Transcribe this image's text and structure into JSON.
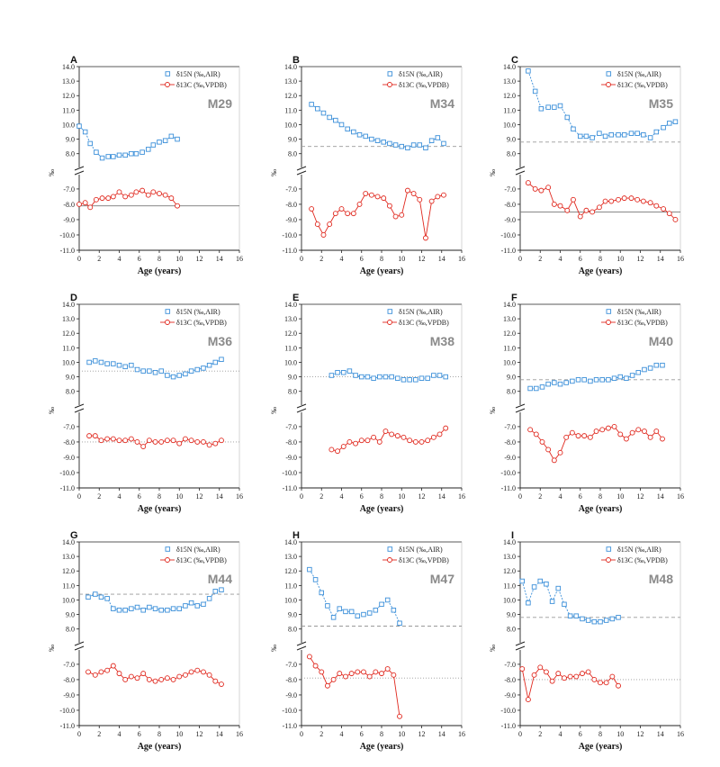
{
  "figure": {
    "xlabel": "Age (years)",
    "ylabel": "‰",
    "n_legend": "δ15N (‰,AIR)",
    "c_legend": "δ13C (‰,VPDB)",
    "x_ticks": [
      "0",
      "2",
      "4",
      "6",
      "8",
      "10",
      "12",
      "14",
      "16"
    ],
    "y_ticks_top": [
      "8.0",
      "9.0",
      "10.0",
      "11.0",
      "12.0",
      "13.0",
      "14.0"
    ],
    "y_ticks_bottom": [
      "-7.0",
      "-8.0",
      "-9.0",
      "-10.0",
      "-11.0"
    ],
    "colors": {
      "n_series": "#3b8fd9",
      "c_series": "#e0281e",
      "axis": "#222222"
    }
  },
  "chart_data": [
    {
      "type": "line",
      "panel": "A",
      "sample": "M29",
      "xlim": [
        0,
        16
      ],
      "y_top_range": [
        7.3,
        14.0
      ],
      "y_bottom_range": [
        -11.0,
        -6.3
      ],
      "series": [
        {
          "name": "δ15N (‰,AIR)",
          "x": [
            0,
            0.6,
            1.1,
            1.7,
            2.3,
            2.9,
            3.4,
            4.0,
            4.6,
            5.2,
            5.7,
            6.3,
            6.9,
            7.4,
            8.0,
            8.6,
            9.2,
            9.8
          ],
          "values": [
            9.9,
            9.5,
            8.7,
            8.1,
            7.7,
            7.8,
            7.8,
            7.9,
            7.9,
            8.0,
            8.0,
            8.1,
            8.3,
            8.6,
            8.8,
            8.9,
            9.2,
            9.0
          ]
        },
        {
          "name": "δ13C (‰,VPDB)",
          "x": [
            0,
            0.6,
            1.1,
            1.7,
            2.3,
            2.9,
            3.4,
            4.0,
            4.6,
            5.2,
            5.7,
            6.3,
            6.9,
            7.4,
            8.0,
            8.6,
            9.2,
            9.8
          ],
          "values": [
            -8.0,
            -7.9,
            -8.2,
            -7.7,
            -7.6,
            -7.6,
            -7.5,
            -7.2,
            -7.5,
            -7.4,
            -7.2,
            -7.1,
            -7.4,
            -7.2,
            -7.3,
            -7.4,
            -7.6,
            -8.1
          ]
        }
      ],
      "reference_lines": [
        {
          "series": "δ13C (‰,VPDB)",
          "y": -8.1,
          "style": "solid"
        }
      ]
    },
    {
      "type": "line",
      "panel": "B",
      "sample": "M34",
      "xlim": [
        0,
        16
      ],
      "y_top_range": [
        7.3,
        14.0
      ],
      "y_bottom_range": [
        -11.0,
        -6.3
      ],
      "series": [
        {
          "name": "δ15N (‰,AIR)",
          "x": [
            1.0,
            1.6,
            2.2,
            2.8,
            3.4,
            4.0,
            4.6,
            5.2,
            5.8,
            6.4,
            7.0,
            7.6,
            8.2,
            8.8,
            9.4,
            10.0,
            10.6,
            11.2,
            11.8,
            12.4,
            13.0,
            13.6,
            14.2
          ],
          "values": [
            11.4,
            11.1,
            10.8,
            10.5,
            10.3,
            10.0,
            9.7,
            9.5,
            9.3,
            9.2,
            9.0,
            8.9,
            8.8,
            8.7,
            8.6,
            8.5,
            8.4,
            8.6,
            8.6,
            8.4,
            8.9,
            9.1,
            8.7
          ]
        },
        {
          "name": "δ13C (‰,VPDB)",
          "x": [
            1.0,
            1.6,
            2.2,
            2.8,
            3.4,
            4.0,
            4.6,
            5.2,
            5.8,
            6.4,
            7.0,
            7.6,
            8.2,
            8.8,
            9.4,
            10.0,
            10.6,
            11.2,
            11.8,
            12.4,
            13.0,
            13.6,
            14.2
          ],
          "values": [
            -8.3,
            -9.3,
            -10.0,
            -9.3,
            -8.6,
            -8.3,
            -8.6,
            -8.6,
            -8.0,
            -7.3,
            -7.4,
            -7.5,
            -7.6,
            -8.1,
            -8.8,
            -8.7,
            -7.1,
            -7.3,
            -7.7,
            -10.2,
            -7.8,
            -7.5,
            -7.4
          ]
        }
      ],
      "reference_lines": [
        {
          "series": "δ15N (‰,AIR)",
          "y": 8.5,
          "style": "dashed"
        }
      ]
    },
    {
      "type": "line",
      "panel": "C",
      "sample": "M35",
      "xlim": [
        0,
        16
      ],
      "y_top_range": [
        7.3,
        14.0
      ],
      "y_bottom_range": [
        -11.0,
        -6.3
      ],
      "series": [
        {
          "name": "δ15N (‰,AIR)",
          "x": [
            0.8,
            1.5,
            2.1,
            2.8,
            3.4,
            4.0,
            4.7,
            5.3,
            6.0,
            6.6,
            7.2,
            7.9,
            8.5,
            9.1,
            9.8,
            10.4,
            11.1,
            11.7,
            12.3,
            13.0,
            13.6,
            14.3,
            14.9,
            15.5
          ],
          "values": [
            13.7,
            12.3,
            11.1,
            11.2,
            11.2,
            11.3,
            10.5,
            9.7,
            9.2,
            9.2,
            9.1,
            9.4,
            9.2,
            9.3,
            9.3,
            9.3,
            9.4,
            9.4,
            9.3,
            9.1,
            9.5,
            9.8,
            10.1,
            10.2
          ]
        },
        {
          "name": "δ13C (‰,VPDB)",
          "x": [
            0.8,
            1.5,
            2.1,
            2.8,
            3.4,
            4.0,
            4.7,
            5.3,
            6.0,
            6.6,
            7.2,
            7.9,
            8.5,
            9.1,
            9.8,
            10.4,
            11.1,
            11.7,
            12.3,
            13.0,
            13.6,
            14.3,
            14.9,
            15.5
          ],
          "values": [
            -6.6,
            -7.0,
            -7.1,
            -6.9,
            -8.0,
            -8.1,
            -8.4,
            -7.7,
            -8.8,
            -8.4,
            -8.5,
            -8.2,
            -7.8,
            -7.8,
            -7.7,
            -7.6,
            -7.6,
            -7.7,
            -7.8,
            -7.9,
            -8.1,
            -8.3,
            -8.6,
            -9.0
          ]
        }
      ],
      "reference_lines": [
        {
          "series": "δ15N (‰,AIR)",
          "y": 8.8,
          "style": "dashed"
        },
        {
          "series": "δ13C (‰,VPDB)",
          "y": -8.5,
          "style": "solid"
        }
      ]
    },
    {
      "type": "line",
      "panel": "D",
      "sample": "M36",
      "xlim": [
        0,
        16
      ],
      "y_top_range": [
        7.3,
        14.0
      ],
      "y_bottom_range": [
        -11.0,
        -6.3
      ],
      "series": [
        {
          "name": "δ15N (‰,AIR)",
          "x": [
            1.0,
            1.6,
            2.2,
            2.8,
            3.4,
            4.0,
            4.6,
            5.2,
            5.8,
            6.4,
            7.0,
            7.6,
            8.2,
            8.8,
            9.4,
            10.0,
            10.6,
            11.2,
            11.8,
            12.4,
            13.0,
            13.6,
            14.2
          ],
          "values": [
            10.0,
            10.1,
            10.0,
            9.9,
            9.9,
            9.8,
            9.7,
            9.8,
            9.5,
            9.4,
            9.4,
            9.3,
            9.4,
            9.1,
            9.0,
            9.1,
            9.2,
            9.4,
            9.5,
            9.6,
            9.8,
            10.0,
            10.2
          ]
        },
        {
          "name": "δ13C (‰,VPDB)",
          "x": [
            1.0,
            1.6,
            2.2,
            2.8,
            3.4,
            4.0,
            4.6,
            5.2,
            5.8,
            6.4,
            7.0,
            7.6,
            8.2,
            8.8,
            9.4,
            10.0,
            10.6,
            11.2,
            11.8,
            12.4,
            13.0,
            13.6,
            14.2
          ],
          "values": [
            -7.6,
            -7.6,
            -7.9,
            -7.8,
            -7.8,
            -7.9,
            -7.9,
            -7.8,
            -8.0,
            -8.3,
            -7.9,
            -8.0,
            -8.0,
            -7.9,
            -7.9,
            -8.1,
            -7.8,
            -7.9,
            -8.0,
            -8.0,
            -8.2,
            -8.1,
            -7.9
          ]
        }
      ],
      "reference_lines": [
        {
          "series": "δ15N (‰,AIR)",
          "y": 9.4,
          "style": "dotted"
        },
        {
          "series": "δ13C (‰,VPDB)",
          "y": -8.0,
          "style": "dotted"
        }
      ]
    },
    {
      "type": "line",
      "panel": "E",
      "sample": "M38",
      "xlim": [
        0,
        16
      ],
      "y_top_range": [
        7.3,
        14.0
      ],
      "y_bottom_range": [
        -11.0,
        -6.3
      ],
      "series": [
        {
          "name": "δ15N (‰,AIR)",
          "x": [
            3.0,
            3.6,
            4.2,
            4.8,
            5.4,
            6.0,
            6.6,
            7.2,
            7.8,
            8.4,
            9.0,
            9.6,
            10.2,
            10.8,
            11.4,
            12.0,
            12.6,
            13.2,
            13.8,
            14.4
          ],
          "values": [
            9.1,
            9.3,
            9.3,
            9.4,
            9.1,
            9.0,
            9.0,
            8.9,
            9.0,
            9.0,
            9.0,
            8.9,
            8.8,
            8.8,
            8.8,
            8.9,
            8.9,
            9.1,
            9.1,
            9.0
          ]
        },
        {
          "name": "δ13C (‰,VPDB)",
          "x": [
            3.0,
            3.6,
            4.2,
            4.8,
            5.4,
            6.0,
            6.6,
            7.2,
            7.8,
            8.4,
            9.0,
            9.6,
            10.2,
            10.8,
            11.4,
            12.0,
            12.6,
            13.2,
            13.8,
            14.4
          ],
          "values": [
            -8.5,
            -8.6,
            -8.3,
            -8.0,
            -8.1,
            -7.9,
            -7.9,
            -7.7,
            -8.0,
            -7.3,
            -7.5,
            -7.6,
            -7.7,
            -7.9,
            -8.0,
            -8.0,
            -7.9,
            -7.7,
            -7.5,
            -7.1
          ]
        }
      ],
      "reference_lines": [
        {
          "series": "δ15N (‰,AIR)",
          "y": 9.0,
          "style": "dotted"
        }
      ]
    },
    {
      "type": "line",
      "panel": "F",
      "sample": "M40",
      "xlim": [
        0,
        16
      ],
      "y_top_range": [
        7.3,
        14.0
      ],
      "y_bottom_range": [
        -11.0,
        -6.3
      ],
      "series": [
        {
          "name": "δ15N (‰,AIR)",
          "x": [
            1.0,
            1.6,
            2.2,
            2.8,
            3.4,
            4.0,
            4.6,
            5.2,
            5.8,
            6.4,
            7.0,
            7.6,
            8.2,
            8.8,
            9.4,
            10.0,
            10.6,
            11.2,
            11.8,
            12.4,
            13.0,
            13.6,
            14.2
          ],
          "values": [
            8.2,
            8.2,
            8.3,
            8.5,
            8.6,
            8.5,
            8.6,
            8.7,
            8.8,
            8.8,
            8.7,
            8.8,
            8.8,
            8.8,
            8.9,
            9.0,
            8.9,
            9.1,
            9.3,
            9.5,
            9.6,
            9.8,
            9.8
          ]
        },
        {
          "name": "δ13C (‰,VPDB)",
          "x": [
            1.0,
            1.6,
            2.2,
            2.8,
            3.4,
            4.0,
            4.6,
            5.2,
            5.8,
            6.4,
            7.0,
            7.6,
            8.2,
            8.8,
            9.4,
            10.0,
            10.6,
            11.2,
            11.8,
            12.4,
            13.0,
            13.6,
            14.2
          ],
          "values": [
            -7.2,
            -7.5,
            -8.0,
            -8.5,
            -9.2,
            -8.7,
            -7.7,
            -7.4,
            -7.6,
            -7.6,
            -7.7,
            -7.3,
            -7.2,
            -7.1,
            -7.0,
            -7.5,
            -7.8,
            -7.4,
            -7.2,
            -7.3,
            -7.7,
            -7.3,
            -7.8
          ]
        }
      ],
      "reference_lines": [
        {
          "series": "δ15N (‰,AIR)",
          "y": 8.8,
          "style": "dashed"
        }
      ]
    },
    {
      "type": "line",
      "panel": "G",
      "sample": "M44",
      "xlim": [
        0,
        16
      ],
      "y_top_range": [
        7.3,
        14.0
      ],
      "y_bottom_range": [
        -11.0,
        -6.3
      ],
      "series": [
        {
          "name": "δ15N (‰,AIR)",
          "x": [
            0.9,
            1.6,
            2.2,
            2.8,
            3.4,
            4.0,
            4.6,
            5.2,
            5.8,
            6.4,
            7.0,
            7.6,
            8.2,
            8.8,
            9.4,
            10.0,
            10.6,
            11.2,
            11.8,
            12.4,
            13.0,
            13.6,
            14.2
          ],
          "values": [
            10.2,
            10.4,
            10.2,
            10.1,
            9.4,
            9.3,
            9.3,
            9.4,
            9.5,
            9.3,
            9.5,
            9.4,
            9.3,
            9.3,
            9.4,
            9.4,
            9.6,
            9.8,
            9.6,
            9.7,
            10.1,
            10.6,
            10.7
          ]
        },
        {
          "name": "δ13C (‰,VPDB)",
          "x": [
            0.9,
            1.6,
            2.2,
            2.8,
            3.4,
            4.0,
            4.6,
            5.2,
            5.8,
            6.4,
            7.0,
            7.6,
            8.2,
            8.8,
            9.4,
            10.0,
            10.6,
            11.2,
            11.8,
            12.4,
            13.0,
            13.6,
            14.2
          ],
          "values": [
            -7.5,
            -7.7,
            -7.5,
            -7.4,
            -7.1,
            -7.6,
            -8.0,
            -7.8,
            -7.9,
            -7.6,
            -8.0,
            -8.1,
            -8.0,
            -7.9,
            -8.0,
            -7.8,
            -7.7,
            -7.5,
            -7.4,
            -7.5,
            -7.7,
            -8.1,
            -8.3
          ]
        }
      ],
      "reference_lines": [
        {
          "series": "δ15N (‰,AIR)",
          "y": 10.4,
          "style": "dashed"
        }
      ]
    },
    {
      "type": "line",
      "panel": "H",
      "sample": "M47",
      "xlim": [
        0,
        16
      ],
      "y_top_range": [
        7.3,
        14.0
      ],
      "y_bottom_range": [
        -11.0,
        -6.3
      ],
      "series": [
        {
          "name": "δ15N (‰,AIR)",
          "x": [
            0.8,
            1.4,
            2.0,
            2.6,
            3.2,
            3.8,
            4.4,
            5.0,
            5.6,
            6.2,
            6.8,
            7.4,
            8.0,
            8.6,
            9.2,
            9.8
          ],
          "values": [
            12.1,
            11.4,
            10.5,
            9.6,
            8.8,
            9.4,
            9.2,
            9.2,
            8.9,
            9.0,
            9.1,
            9.3,
            9.7,
            10.0,
            9.3,
            8.4
          ]
        },
        {
          "name": "δ13C (‰,VPDB)",
          "x": [
            0.8,
            1.4,
            2.0,
            2.6,
            3.2,
            3.8,
            4.4,
            5.0,
            5.6,
            6.2,
            6.8,
            7.4,
            8.0,
            8.6,
            9.2,
            9.8
          ],
          "values": [
            -6.5,
            -7.1,
            -7.5,
            -8.4,
            -8.0,
            -7.6,
            -7.8,
            -7.6,
            -7.5,
            -7.5,
            -7.8,
            -7.5,
            -7.6,
            -7.3,
            -7.7,
            -10.4
          ]
        }
      ],
      "reference_lines": [
        {
          "series": "δ15N (‰,AIR)",
          "y": 8.2,
          "style": "dashed"
        },
        {
          "series": "δ13C (‰,VPDB)",
          "y": -7.9,
          "style": "dotted"
        }
      ]
    },
    {
      "type": "line",
      "panel": "I",
      "sample": "M48",
      "xlim": [
        0,
        16
      ],
      "y_top_range": [
        7.3,
        14.0
      ],
      "y_bottom_range": [
        -11.0,
        -6.3
      ],
      "series": [
        {
          "name": "δ15N (‰,AIR)",
          "x": [
            0.2,
            0.8,
            1.4,
            2.0,
            2.6,
            3.2,
            3.8,
            4.4,
            5.0,
            5.6,
            6.2,
            6.8,
            7.4,
            8.0,
            8.6,
            9.2,
            9.8
          ],
          "values": [
            11.3,
            9.8,
            10.9,
            11.3,
            11.1,
            9.9,
            10.8,
            9.7,
            8.9,
            8.9,
            8.7,
            8.6,
            8.5,
            8.5,
            8.6,
            8.7,
            8.8
          ]
        },
        {
          "name": "δ13C (‰,VPDB)",
          "x": [
            0.2,
            0.8,
            1.4,
            2.0,
            2.6,
            3.2,
            3.8,
            4.4,
            5.0,
            5.6,
            6.2,
            6.8,
            7.4,
            8.0,
            8.6,
            9.2,
            9.8
          ],
          "values": [
            -7.3,
            -9.3,
            -7.7,
            -7.2,
            -7.5,
            -8.1,
            -7.6,
            -7.9,
            -7.8,
            -7.8,
            -7.6,
            -7.5,
            -8.0,
            -8.2,
            -8.2,
            -7.8,
            -8.4
          ]
        }
      ],
      "reference_lines": [
        {
          "series": "δ15N (‰,AIR)",
          "y": 8.8,
          "style": "dashed"
        },
        {
          "series": "δ13C (‰,VPDB)",
          "y": -8.0,
          "style": "dotted"
        }
      ]
    }
  ]
}
